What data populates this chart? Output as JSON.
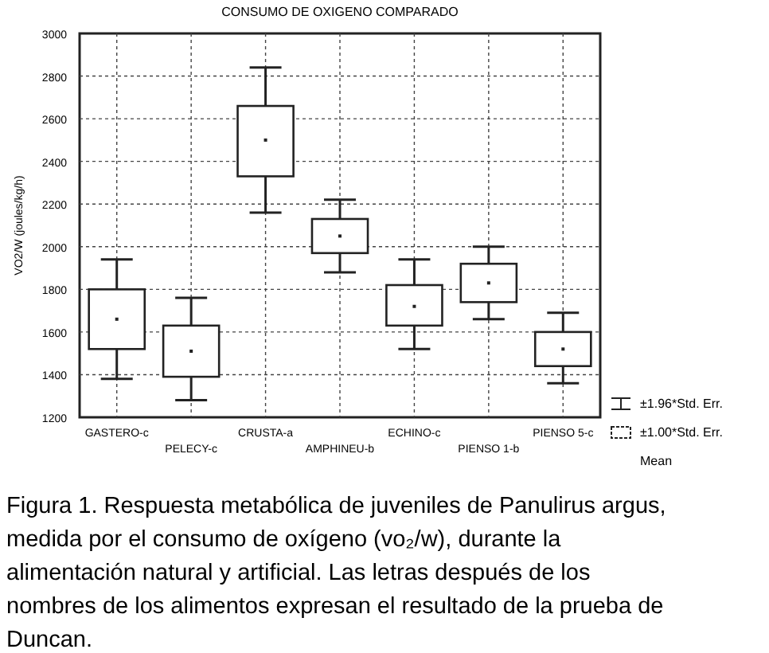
{
  "chart_data": {
    "type": "box",
    "title": "CONSUMO DE OXIGENO COMPARADO",
    "ylabel": "VO2/W (joules/kg/h)",
    "categories": [
      "GASTERO-c",
      "PELECY-c",
      "CRUSTA-a",
      "AMPHINEU-b",
      "ECHINO-c",
      "PIENSO 1-b",
      "PIENSO 5-c"
    ],
    "boxes": [
      {
        "low": 1380,
        "q1": 1520,
        "median": 1660,
        "q3": 1800,
        "high": 1940
      },
      {
        "low": 1280,
        "q1": 1390,
        "median": 1510,
        "q3": 1630,
        "high": 1760
      },
      {
        "low": 2160,
        "q1": 2330,
        "median": 2500,
        "q3": 2660,
        "high": 2840
      },
      {
        "low": 1880,
        "q1": 1970,
        "median": 2050,
        "q3": 2130,
        "high": 2220
      },
      {
        "low": 1520,
        "q1": 1630,
        "median": 1720,
        "q3": 1820,
        "high": 1940
      },
      {
        "low": 1660,
        "q1": 1740,
        "median": 1830,
        "q3": 1920,
        "high": 2000
      },
      {
        "low": 1360,
        "q1": 1440,
        "median": 1520,
        "q3": 1600,
        "high": 1690
      }
    ],
    "color": "#ffffff",
    "ylim": [
      1200,
      3000
    ],
    "yticks": [
      1200,
      1400,
      1600,
      1800,
      2000,
      2200,
      2400,
      2600,
      2800,
      3000
    ],
    "grid": true,
    "annotations": [
      "±1.96*Std. Err.",
      "±1.00*Std. Err.",
      "Mean",
      "Figura 1. Respuesta metabólica de juveniles de Panulirus argus, medida por el consumo de oxígeno (vo₂/w), durante la alimentación natural y artificial. Las letras después de los nombres de los alimentos expresan el resultado de la prueba de Duncan."
    ]
  }
}
